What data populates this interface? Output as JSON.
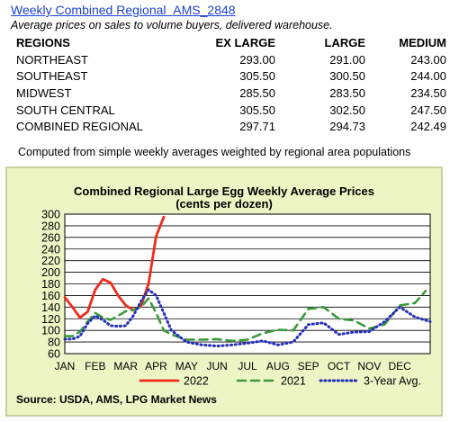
{
  "header": {
    "link_text": "Weekly Combined Regional",
    "code": "AMS_2848",
    "subtitle": "Average prices on sales to volume buyers, delivered warehouse."
  },
  "table": {
    "columns": [
      "REGIONS",
      "EX LARGE",
      "LARGE",
      "MEDIUM"
    ],
    "rows": [
      [
        "NORTHEAST",
        "293.00",
        "291.00",
        "243.00"
      ],
      [
        "SOUTHEAST",
        "305.50",
        "300.50",
        "244.00"
      ],
      [
        "MIDWEST",
        "285.50",
        "283.50",
        "234.50"
      ],
      [
        "SOUTH CENTRAL",
        "305.50",
        "302.50",
        "247.50"
      ],
      [
        "COMBINED REGIONAL",
        "297.71",
        "294.73",
        "242.49"
      ]
    ]
  },
  "footnote": "Computed from simple weekly averages weighted by regional area populations",
  "colors": {
    "panel_background": "#eef5c5",
    "panel_border": "#b8c28a",
    "plot_background": "#ffffff",
    "grid": "#000000",
    "series_2022": "#ee2b1b",
    "series_2021": "#3a9a3a",
    "series_3yr": "#2430b8",
    "link": "#1a3fd6"
  },
  "chart_data": {
    "type": "line",
    "title": "Combined Regional Large Egg Weekly Average Prices",
    "subtitle": "(cents per dozen)",
    "x_labels": [
      "JAN",
      "FEB",
      "MAR",
      "APR",
      "MAY",
      "JUN",
      "JUL",
      "AUG",
      "SEP",
      "OCT",
      "NOV",
      "DEC"
    ],
    "y_ticks": [
      60,
      80,
      100,
      120,
      140,
      160,
      180,
      200,
      220,
      240,
      260,
      280,
      300
    ],
    "ylim": [
      60,
      300
    ],
    "grid": true,
    "legend_position": "bottom",
    "source": "Source: USDA, AMS, LPG  Market News",
    "series": [
      {
        "name": "2022",
        "style": "solid",
        "points": [
          [
            1.0,
            157
          ],
          [
            1.25,
            140
          ],
          [
            1.5,
            122
          ],
          [
            1.75,
            132
          ],
          [
            2.0,
            170
          ],
          [
            2.25,
            188
          ],
          [
            2.5,
            182
          ],
          [
            2.75,
            160
          ],
          [
            3.0,
            143
          ],
          [
            3.25,
            135
          ],
          [
            3.5,
            142
          ],
          [
            3.75,
            180
          ],
          [
            4.0,
            262
          ],
          [
            4.25,
            295
          ]
        ]
      },
      {
        "name": "2021",
        "style": "dashed",
        "points": [
          [
            1.0,
            90
          ],
          [
            1.25,
            90
          ],
          [
            1.5,
            98
          ],
          [
            1.75,
            115
          ],
          [
            2.0,
            130
          ],
          [
            2.25,
            122
          ],
          [
            2.5,
            118
          ],
          [
            2.75,
            125
          ],
          [
            3.0,
            133
          ],
          [
            3.25,
            135
          ],
          [
            3.5,
            140
          ],
          [
            3.75,
            155
          ],
          [
            4.0,
            130
          ],
          [
            4.25,
            100
          ],
          [
            4.5,
            93
          ],
          [
            5.0,
            84
          ],
          [
            5.5,
            84
          ],
          [
            6.0,
            85
          ],
          [
            6.5,
            82
          ],
          [
            7.0,
            84
          ],
          [
            7.5,
            95
          ],
          [
            8.0,
            101
          ],
          [
            8.5,
            100
          ],
          [
            9.0,
            137
          ],
          [
            9.5,
            140
          ],
          [
            10.0,
            120
          ],
          [
            10.5,
            117
          ],
          [
            11.0,
            103
          ],
          [
            11.5,
            110
          ],
          [
            12.0,
            143
          ],
          [
            12.5,
            147
          ],
          [
            12.85,
            168
          ]
        ]
      },
      {
        "name": "3-Year Avg.",
        "style": "dotted",
        "points": [
          [
            1.0,
            85
          ],
          [
            1.25,
            85
          ],
          [
            1.5,
            90
          ],
          [
            1.75,
            112
          ],
          [
            2.0,
            125
          ],
          [
            2.25,
            118
          ],
          [
            2.5,
            108
          ],
          [
            2.75,
            107
          ],
          [
            3.0,
            108
          ],
          [
            3.25,
            125
          ],
          [
            3.5,
            150
          ],
          [
            3.75,
            170
          ],
          [
            4.0,
            160
          ],
          [
            4.25,
            130
          ],
          [
            4.5,
            100
          ],
          [
            5.0,
            80
          ],
          [
            5.5,
            75
          ],
          [
            6.0,
            73
          ],
          [
            6.5,
            75
          ],
          [
            7.0,
            78
          ],
          [
            7.5,
            82
          ],
          [
            8.0,
            75
          ],
          [
            8.5,
            80
          ],
          [
            9.0,
            110
          ],
          [
            9.5,
            113
          ],
          [
            10.0,
            93
          ],
          [
            10.5,
            97
          ],
          [
            11.0,
            98
          ],
          [
            11.5,
            115
          ],
          [
            12.0,
            140
          ],
          [
            12.5,
            123
          ],
          [
            13.0,
            115
          ]
        ]
      }
    ]
  }
}
